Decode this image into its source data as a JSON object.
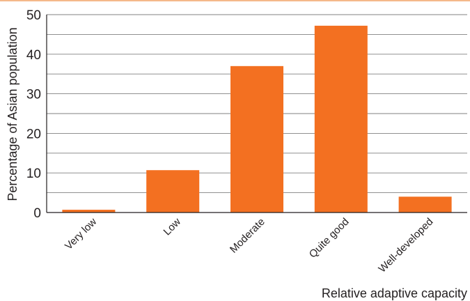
{
  "chart_data": {
    "type": "bar",
    "title": "",
    "xlabel": "Relative adaptive capacity",
    "ylabel": "Percentage of Asian population",
    "categories": [
      "Very low",
      "Low",
      "Moderate",
      "Quite good",
      "Well-developed"
    ],
    "values": [
      0.7,
      10.7,
      37.0,
      47.2,
      4.0
    ],
    "ylim": [
      0,
      50
    ],
    "yticks": [
      0,
      10,
      20,
      30,
      40,
      50
    ],
    "ytick_labels": [
      "0",
      "10",
      "20",
      "30",
      "40",
      "50"
    ],
    "grid_step": 5,
    "grid": true,
    "legend": "none",
    "bar_color": "#f37021",
    "grid_color": "#808080",
    "axis_color": "#231f20",
    "text_color": "#231f20",
    "accent_rule_color": "#f5b98a"
  }
}
